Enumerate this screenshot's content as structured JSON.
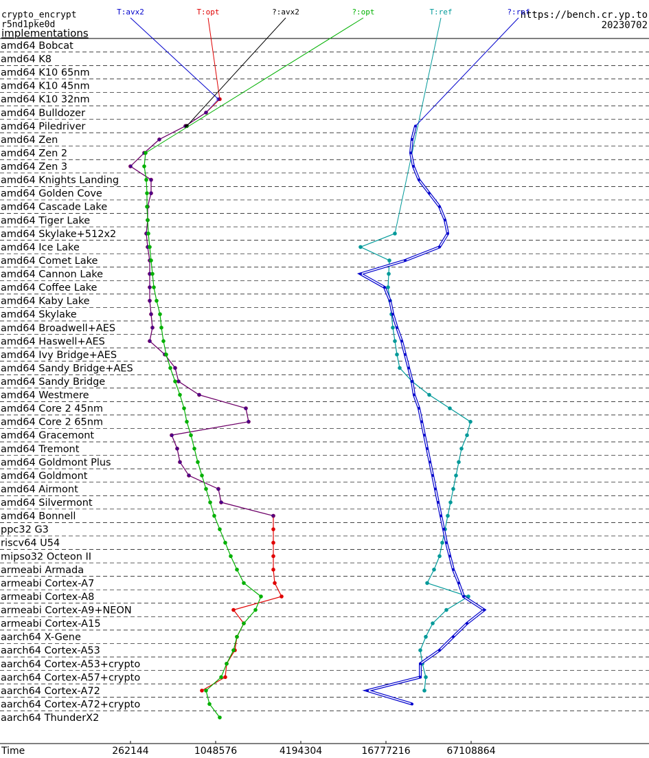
{
  "chart_data": {
    "type": "line",
    "header": {
      "primitive": "crypto_encrypt",
      "name": "r5nd1pke0d",
      "subtitle": "implementations",
      "url": "https://bench.cr.yp.to",
      "date": "20230702"
    },
    "x_label": "Time",
    "xscale": "log",
    "xlim": [
      32768,
      1073741824
    ],
    "xticks": [
      262144,
      1048576,
      4194304,
      16777216,
      67108864
    ],
    "categories": [
      "amd64 Bobcat",
      "amd64 K8",
      "amd64 K10 65nm",
      "amd64 K10 45nm",
      "amd64 K10 32nm",
      "amd64 Bulldozer",
      "amd64 Piledriver",
      "amd64 Zen",
      "amd64 Zen 2",
      "amd64 Zen 3",
      "amd64 Knights Landing",
      "amd64 Golden Cove",
      "amd64 Cascade Lake",
      "amd64 Tiger Lake",
      "amd64 Skylake+512x2",
      "amd64 Ice Lake",
      "amd64 Comet Lake",
      "amd64 Cannon Lake",
      "amd64 Coffee Lake",
      "amd64 Kaby Lake",
      "amd64 Skylake",
      "amd64 Broadwell+AES",
      "amd64 Haswell+AES",
      "amd64 Ivy Bridge+AES",
      "amd64 Sandy Bridge+AES",
      "amd64 Sandy Bridge",
      "amd64 Westmere",
      "amd64 Core 2 45nm",
      "amd64 Core 2 65nm",
      "amd64 Gracemont",
      "amd64 Tremont",
      "amd64 Goldmont Plus",
      "amd64 Goldmont",
      "amd64 Airmont",
      "amd64 Silvermont",
      "amd64 Bonnell",
      "ppc32 G3",
      "riscv64 U54",
      "mipso32 Octeon II",
      "armeabi Armada",
      "armeabi Cortex-A7",
      "armeabi Cortex-A8",
      "armeabi Cortex-A9+NEON",
      "armeabi Cortex-A15",
      "aarch64 X-Gene",
      "aarch64 Cortex-A53",
      "aarch64 Cortex-A53+crypto",
      "aarch64 Cortex-A57+crypto",
      "aarch64 Cortex-A72",
      "aarch64 Cortex-A72+crypto",
      "aarch64 ThunderX2"
    ],
    "series": [
      {
        "name": "T:avx2",
        "color": "#0000cc",
        "values": [
          null,
          null,
          null,
          null,
          1096000,
          896600,
          641200,
          419200,
          327800,
          262000,
          366600,
          366600,
          346700,
          346700,
          339100,
          346700,
          358500,
          358500,
          358500,
          358500,
          366600,
          374900,
          358500,
          458500,
          542100,
          573300,
          801800,
          1715000,
          1793000,
          512700,
          560600,
          586300,
          678100,
          1096000,
          1147000,
          2682000,
          null,
          null,
          null,
          null,
          null,
          null,
          null,
          null,
          null,
          null,
          null,
          null,
          null,
          null,
          null
        ]
      },
      {
        "name": "T:opt",
        "color": "#e00000",
        "values": [
          null,
          null,
          null,
          null,
          1121000,
          896600,
          641200,
          419200,
          327800,
          262000,
          366600,
          366600,
          346700,
          346700,
          339100,
          346700,
          358500,
          358500,
          358500,
          358500,
          366600,
          374900,
          358500,
          458500,
          542100,
          573300,
          801800,
          1715000,
          1793000,
          512700,
          560600,
          586300,
          678100,
          1096000,
          1147000,
          2682000,
          2682000,
          2682000,
          2682000,
          2682000,
          2743000,
          3067000,
          1402000,
          1658000,
          1483000,
          1434000,
          1254000,
          1226000,
          838400,
          null,
          null
        ]
      },
      {
        "name": "?:avx2",
        "color": "#000000",
        "values": [
          null,
          null,
          null,
          null,
          null,
          null,
          655700,
          null,
          null,
          null,
          null,
          null,
          null,
          null,
          null,
          null,
          null,
          null,
          null,
          null,
          null,
          null,
          null,
          null,
          null,
          null,
          null,
          null,
          null,
          null,
          null,
          null,
          null,
          null,
          null,
          null,
          null,
          null,
          null,
          null,
          null,
          null,
          null,
          null,
          null,
          null,
          null,
          null,
          null,
          null,
          null
        ]
      },
      {
        "name": "?:opt",
        "color": "#00b000",
        "values": [
          null,
          null,
          null,
          null,
          null,
          null,
          null,
          null,
          335300,
          327800,
          339100,
          342900,
          342900,
          346700,
          350600,
          358500,
          366600,
          374900,
          383400,
          400900,
          423900,
          433500,
          448300,
          468800,
          501400,
          542100,
          586300,
          627000,
          655700,
          701200,
          741500,
          784000,
          838400,
          896600,
          958900,
          1025000,
          1121000,
          1226000,
          1341000,
          1483000,
          1658000,
          2193000,
          2006000,
          1658000,
          1483000,
          1402000,
          1254000,
          1147000,
          896600,
          948200,
          1121000
        ]
      },
      {
        "name": "T:ref",
        "color": "#009999",
        "values": [
          null,
          null,
          null,
          null,
          null,
          null,
          null,
          null,
          null,
          null,
          null,
          null,
          null,
          null,
          19400000,
          11090000,
          17740000,
          17550000,
          17350000,
          17940000,
          18350000,
          18760000,
          19400000,
          20060000,
          20980000,
          25660000,
          33930000,
          47450000,
          66370000,
          62760000,
          57380000,
          54870000,
          52480000,
          50170000,
          47980000,
          45880000,
          43880000,
          41950000,
          40130000,
          36690000,
          32810000,
          64170000,
          44870000,
          35890000,
          32090000,
          29340000,
          30340000,
          32090000,
          31380000,
          null,
          null
        ]
      },
      {
        "name": "?:ref",
        "color": "#0000cc",
        "values": [
          null,
          null,
          null,
          null,
          null,
          null,
          27130000,
          25660000,
          25090000,
          26240000,
          28690000,
          33930000,
          40130000,
          43880000,
          45880000,
          40130000,
          22940000,
          11090000,
          16410000,
          17940000,
          18760000,
          20060000,
          21700000,
          22940000,
          24260000,
          25660000,
          26530000,
          28690000,
          30000000,
          31380000,
          32810000,
          34310000,
          35890000,
          37520000,
          39240000,
          41030000,
          42910000,
          44870000,
          47450000,
          50170000,
          54870000,
          59330000,
          82970000,
          62760000,
          50170000,
          40130000,
          29340000,
          29340000,
          12400000,
          25660000,
          null
        ]
      }
    ]
  }
}
